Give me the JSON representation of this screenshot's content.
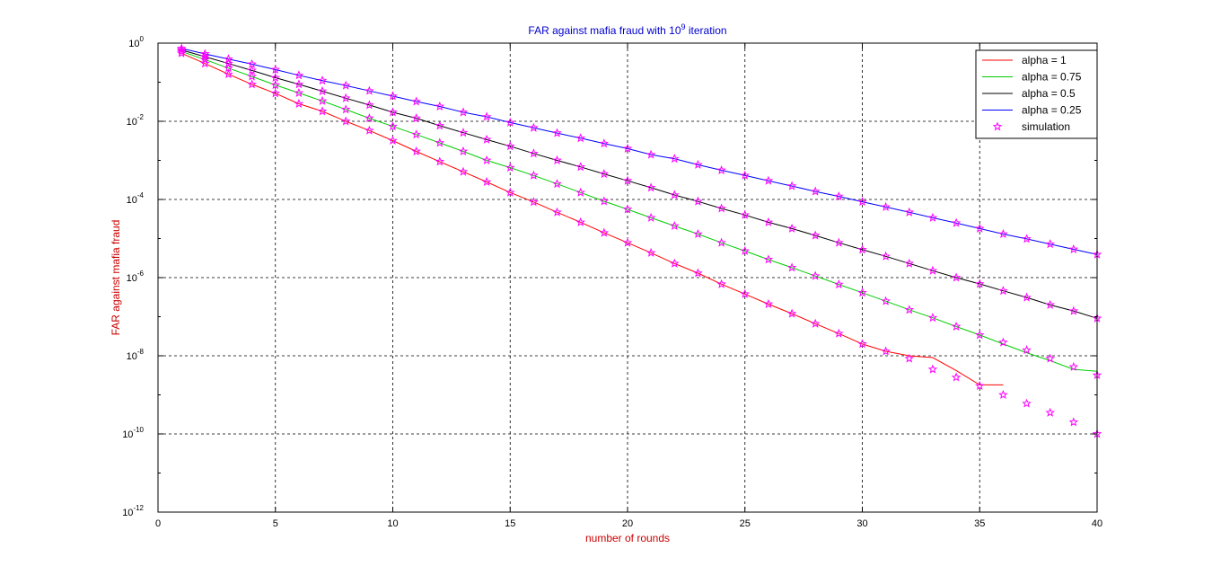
{
  "chart_data": {
    "type": "line",
    "title": "FAR against mafia fraud with 10",
    "title_exponent": "9",
    "title_suffix": " iteration",
    "xlabel": "number of rounds",
    "ylabel": "FAR against mafia fraud",
    "xlim": [
      0,
      40
    ],
    "ylim": [
      1e-12,
      1
    ],
    "yscale": "log",
    "grid": true,
    "legend_position": "top-right",
    "x_ticks": [
      0,
      5,
      10,
      15,
      20,
      25,
      30,
      35,
      40
    ],
    "y_ticks": [
      {
        "base": "10",
        "exp": "0",
        "value": 1
      },
      {
        "base": "10",
        "exp": "-2",
        "value": 0.01
      },
      {
        "base": "10",
        "exp": "-4",
        "value": 0.0001
      },
      {
        "base": "10",
        "exp": "-6",
        "value": 1e-06
      },
      {
        "base": "10",
        "exp": "-8",
        "value": 1e-08
      },
      {
        "base": "10",
        "exp": "-10",
        "value": 1e-10
      },
      {
        "base": "10",
        "exp": "-12",
        "value": 1e-12
      }
    ],
    "series": [
      {
        "name": "alpha = 1",
        "color": "#ff0000",
        "x": [
          1,
          2,
          3,
          4,
          5,
          6,
          7,
          8,
          9,
          10,
          11,
          12,
          13,
          14,
          15,
          16,
          17,
          18,
          19,
          20,
          21,
          22,
          23,
          24,
          25,
          26,
          27,
          28,
          29,
          30,
          31,
          32,
          33,
          34,
          35,
          36
        ],
        "y": [
          0.55,
          0.3,
          0.16,
          0.088,
          0.052,
          0.028,
          0.018,
          0.01,
          0.0058,
          0.0032,
          0.0017,
          0.00093,
          0.00051,
          0.00028,
          0.00015,
          8.6e-05,
          4.7e-05,
          2.6e-05,
          1.4e-05,
          7.8e-06,
          4.3e-06,
          2.3e-06,
          1.3e-06,
          6.8e-07,
          3.8e-07,
          2.1e-07,
          1.2e-07,
          6.6e-08,
          3.7e-08,
          2e-08,
          1.3e-08,
          1e-08,
          9e-09,
          4.2e-09,
          1.8e-09,
          1.8e-09
        ]
      },
      {
        "name": "alpha = 0.75",
        "color": "#00cc00",
        "x": [
          1,
          2,
          3,
          4,
          5,
          6,
          7,
          8,
          9,
          10,
          11,
          12,
          13,
          14,
          15,
          16,
          17,
          18,
          19,
          20,
          21,
          22,
          23,
          24,
          25,
          26,
          27,
          28,
          29,
          30,
          31,
          32,
          33,
          34,
          35,
          36,
          37,
          38,
          39,
          40
        ],
        "y": [
          0.61,
          0.38,
          0.23,
          0.14,
          0.085,
          0.053,
          0.033,
          0.02,
          0.012,
          0.0074,
          0.0046,
          0.0028,
          0.0017,
          0.001,
          0.00065,
          0.00041,
          0.00025,
          0.00015,
          9e-05,
          5.6e-05,
          3.4e-05,
          2.1e-05,
          1.3e-05,
          7.8e-06,
          4.8e-06,
          2.9e-06,
          1.8e-06,
          1.1e-06,
          6.7e-07,
          4.1e-07,
          2.5e-07,
          1.5e-07,
          9.4e-08,
          5.6e-08,
          3.4e-08,
          2e-08,
          1.2e-08,
          7.5e-09,
          4.5e-09,
          4e-09
        ]
      },
      {
        "name": "alpha = 0.5",
        "color": "#000000",
        "x": [
          1,
          2,
          3,
          4,
          5,
          6,
          7,
          8,
          9,
          10,
          11,
          12,
          13,
          14,
          15,
          16,
          17,
          18,
          19,
          20,
          21,
          22,
          23,
          24,
          25,
          26,
          27,
          28,
          29,
          30,
          31,
          32,
          33,
          34,
          35,
          36,
          37,
          38,
          39,
          40
        ],
        "y": [
          0.67,
          0.45,
          0.3,
          0.2,
          0.13,
          0.088,
          0.059,
          0.039,
          0.026,
          0.017,
          0.012,
          0.0077,
          0.0051,
          0.0034,
          0.0023,
          0.0015,
          0.001,
          0.00068,
          0.00045,
          0.0003,
          0.0002,
          0.00013,
          8.9e-05,
          5.9e-05,
          4e-05,
          2.6e-05,
          1.8e-05,
          1.2e-05,
          7.8e-06,
          5.2e-06,
          3.5e-06,
          2.3e-06,
          1.5e-06,
          1e-06,
          6.9e-07,
          4.6e-07,
          3.1e-07,
          2e-07,
          1.4e-07,
          9.1e-08
        ]
      },
      {
        "name": "alpha = 0.25",
        "color": "#0000ff",
        "x": [
          1,
          2,
          3,
          4,
          5,
          6,
          7,
          8,
          9,
          10,
          11,
          12,
          13,
          14,
          15,
          16,
          17,
          18,
          19,
          20,
          21,
          22,
          23,
          24,
          25,
          26,
          27,
          28,
          29,
          30,
          31,
          32,
          33,
          34,
          35,
          36,
          37,
          38,
          39,
          40
        ],
        "y": [
          0.73,
          0.53,
          0.39,
          0.29,
          0.21,
          0.15,
          0.11,
          0.082,
          0.06,
          0.044,
          0.032,
          0.024,
          0.017,
          0.013,
          0.0093,
          0.0068,
          0.005,
          0.0037,
          0.0027,
          0.002,
          0.0014,
          0.0011,
          0.00077,
          0.00056,
          0.00041,
          0.0003,
          0.00022,
          0.00016,
          0.00012,
          8.7e-05,
          6.4e-05,
          4.7e-05,
          3.4e-05,
          2.5e-05,
          1.8e-05,
          1.3e-05,
          9.8e-06,
          7.2e-06,
          5.3e-06,
          3.9e-06
        ]
      },
      {
        "name": "simulation",
        "color": "#ff00ff",
        "marker": "star",
        "points": [
          [
            1,
            0.73
          ],
          [
            2,
            0.53
          ],
          [
            3,
            0.39
          ],
          [
            4,
            0.29
          ],
          [
            5,
            0.21
          ],
          [
            6,
            0.15
          ],
          [
            7,
            0.11
          ],
          [
            8,
            0.082
          ],
          [
            9,
            0.06
          ],
          [
            10,
            0.044
          ],
          [
            11,
            0.032
          ],
          [
            12,
            0.024
          ],
          [
            13,
            0.017
          ],
          [
            14,
            0.013
          ],
          [
            15,
            0.0093
          ],
          [
            16,
            0.0068
          ],
          [
            17,
            0.005
          ],
          [
            18,
            0.0037
          ],
          [
            19,
            0.0027
          ],
          [
            20,
            0.002
          ],
          [
            21,
            0.0014
          ],
          [
            22,
            0.0011
          ],
          [
            23,
            0.00077
          ],
          [
            24,
            0.00056
          ],
          [
            25,
            0.00041
          ],
          [
            26,
            0.0003
          ],
          [
            27,
            0.00022
          ],
          [
            28,
            0.00016
          ],
          [
            29,
            0.00012
          ],
          [
            30,
            8.7e-05
          ],
          [
            31,
            6.4e-05
          ],
          [
            32,
            4.7e-05
          ],
          [
            33,
            3.4e-05
          ],
          [
            34,
            2.5e-05
          ],
          [
            35,
            1.8e-05
          ],
          [
            36,
            1.3e-05
          ],
          [
            37,
            9.8e-06
          ],
          [
            38,
            7.2e-06
          ],
          [
            39,
            5.3e-06
          ],
          [
            40,
            3.9e-06
          ],
          [
            1,
            0.67
          ],
          [
            2,
            0.45
          ],
          [
            3,
            0.3
          ],
          [
            4,
            0.2
          ],
          [
            5,
            0.13
          ],
          [
            6,
            0.088
          ],
          [
            7,
            0.059
          ],
          [
            8,
            0.039
          ],
          [
            9,
            0.026
          ],
          [
            10,
            0.017
          ],
          [
            11,
            0.012
          ],
          [
            12,
            0.0077
          ],
          [
            13,
            0.0051
          ],
          [
            14,
            0.0034
          ],
          [
            15,
            0.0023
          ],
          [
            16,
            0.0015
          ],
          [
            17,
            0.001
          ],
          [
            18,
            0.00068
          ],
          [
            19,
            0.00045
          ],
          [
            20,
            0.0003
          ],
          [
            21,
            0.0002
          ],
          [
            22,
            0.00013
          ],
          [
            23,
            8.9e-05
          ],
          [
            24,
            5.9e-05
          ],
          [
            25,
            4e-05
          ],
          [
            26,
            2.6e-05
          ],
          [
            27,
            1.8e-05
          ],
          [
            28,
            1.2e-05
          ],
          [
            29,
            7.8e-06
          ],
          [
            30,
            5.2e-06
          ],
          [
            31,
            3.5e-06
          ],
          [
            32,
            2.3e-06
          ],
          [
            33,
            1.5e-06
          ],
          [
            34,
            1e-06
          ],
          [
            35,
            6.9e-07
          ],
          [
            36,
            4.6e-07
          ],
          [
            37,
            3.1e-07
          ],
          [
            38,
            2e-07
          ],
          [
            39,
            1.4e-07
          ],
          [
            40,
            9.1e-08
          ],
          [
            1,
            0.61
          ],
          [
            2,
            0.38
          ],
          [
            3,
            0.23
          ],
          [
            4,
            0.14
          ],
          [
            5,
            0.085
          ],
          [
            6,
            0.053
          ],
          [
            7,
            0.033
          ],
          [
            8,
            0.02
          ],
          [
            9,
            0.012
          ],
          [
            10,
            0.0074
          ],
          [
            11,
            0.0046
          ],
          [
            12,
            0.0028
          ],
          [
            13,
            0.0017
          ],
          [
            14,
            0.001
          ],
          [
            15,
            0.00065
          ],
          [
            16,
            0.00041
          ],
          [
            17,
            0.00025
          ],
          [
            18,
            0.00015
          ],
          [
            19,
            9e-05
          ],
          [
            20,
            5.6e-05
          ],
          [
            21,
            3.4e-05
          ],
          [
            22,
            2.1e-05
          ],
          [
            23,
            1.3e-05
          ],
          [
            24,
            7.8e-06
          ],
          [
            25,
            4.8e-06
          ],
          [
            26,
            2.9e-06
          ],
          [
            27,
            1.8e-06
          ],
          [
            28,
            1.1e-06
          ],
          [
            29,
            6.7e-07
          ],
          [
            30,
            4.1e-07
          ],
          [
            31,
            2.5e-07
          ],
          [
            32,
            1.5e-07
          ],
          [
            33,
            9.4e-08
          ],
          [
            34,
            5.6e-08
          ],
          [
            35,
            3.4e-08
          ],
          [
            36,
            2.2e-08
          ],
          [
            37,
            1.4e-08
          ],
          [
            38,
            8.5e-09
          ],
          [
            39,
            5.2e-09
          ],
          [
            40,
            3.2e-09
          ],
          [
            1,
            0.55
          ],
          [
            2,
            0.3
          ],
          [
            3,
            0.16
          ],
          [
            4,
            0.088
          ],
          [
            5,
            0.052
          ],
          [
            6,
            0.028
          ],
          [
            7,
            0.018
          ],
          [
            8,
            0.01
          ],
          [
            9,
            0.0058
          ],
          [
            10,
            0.0032
          ],
          [
            11,
            0.0017
          ],
          [
            12,
            0.00093
          ],
          [
            13,
            0.00051
          ],
          [
            14,
            0.00028
          ],
          [
            15,
            0.00015
          ],
          [
            16,
            8.6e-05
          ],
          [
            17,
            4.7e-05
          ],
          [
            18,
            2.6e-05
          ],
          [
            19,
            1.4e-05
          ],
          [
            20,
            7.8e-06
          ],
          [
            21,
            4.3e-06
          ],
          [
            22,
            2.3e-06
          ],
          [
            23,
            1.3e-06
          ],
          [
            24,
            6.8e-07
          ],
          [
            25,
            3.8e-07
          ],
          [
            26,
            2.1e-07
          ],
          [
            27,
            1.2e-07
          ],
          [
            28,
            6.6e-08
          ],
          [
            29,
            3.7e-08
          ],
          [
            30,
            2e-08
          ],
          [
            31,
            1.3e-08
          ],
          [
            32,
            8.5e-09
          ],
          [
            33,
            4.5e-09
          ],
          [
            34,
            2.8e-09
          ],
          [
            35,
            1.7e-09
          ],
          [
            36,
            1e-09
          ],
          [
            37,
            6e-10
          ],
          [
            38,
            3.5e-10
          ],
          [
            39,
            2e-10
          ],
          [
            40,
            1e-10
          ]
        ]
      }
    ]
  }
}
